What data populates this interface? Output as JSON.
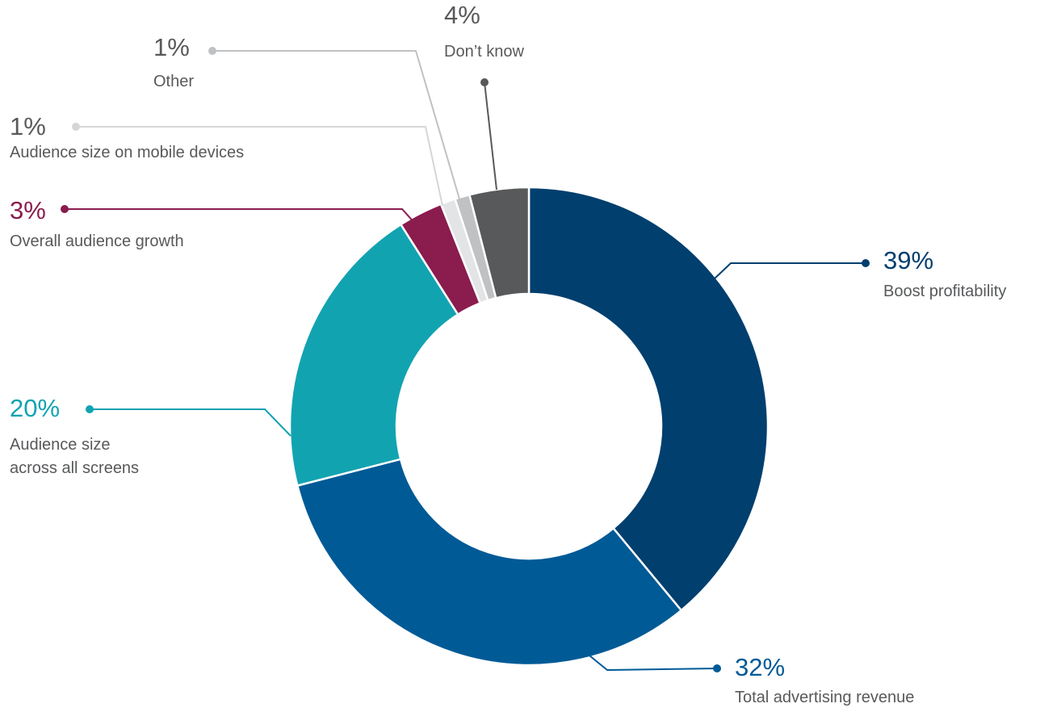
{
  "chart_data": {
    "type": "donut",
    "categories": [
      "Boost profitability",
      "Total advertising revenue",
      "Audience size\nacross all screens",
      "Overall audience growth",
      "Audience size on mobile devices",
      "Other",
      "Don’t know"
    ],
    "values": [
      39,
      32,
      20,
      3,
      1,
      1,
      4
    ],
    "value_labels": [
      "39%",
      "32%",
      "20%",
      "3%",
      "1%",
      "1%",
      "4%"
    ],
    "colors": [
      "#003f6e",
      "#005a96",
      "#12a3b1",
      "#8a1c4e",
      "#e3e4e6",
      "#bfc1c3",
      "#58595b"
    ]
  }
}
